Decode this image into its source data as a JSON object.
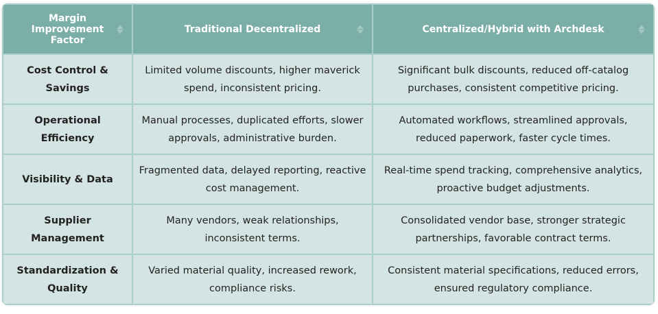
{
  "headers": [
    "Margin Improvement Factor",
    "Traditional Decentralized",
    "Centralized/Hybrid with Archdesk"
  ],
  "rows": [
    [
      "Cost Control & Savings",
      "Limited volume discounts, higher maverick spend, inconsistent pricing.",
      "Significant bulk discounts, reduced off-catalog purchases, consistent competitive pricing."
    ],
    [
      "Operational Efficiency",
      "Manual processes, duplicated efforts, slower approvals, administrative burden.",
      "Automated workflows, streamlined approvals, reduced paperwork, faster cycle times."
    ],
    [
      "Visibility & Data",
      "Fragmented data, delayed reporting, reactive cost management.",
      "Real-time spend tracking, comprehensive analytics, proactive budget adjustments."
    ],
    [
      "Supplier Management",
      "Many vendors, weak relationships, inconsistent terms.",
      "Consolidated vendor base, stronger strategic partnerships, favorable contract terms."
    ],
    [
      "Standardization & Quality",
      "Varied material quality, increased rework, compliance risks.",
      "Consistent material specifications, reduced errors, ensured regulatory compliance."
    ]
  ],
  "colors": {
    "header": "#7aaea6",
    "cell": "#d4e4e2",
    "border": "#a9cfca"
  },
  "icons": {
    "sort": "sort-arrows-icon"
  }
}
